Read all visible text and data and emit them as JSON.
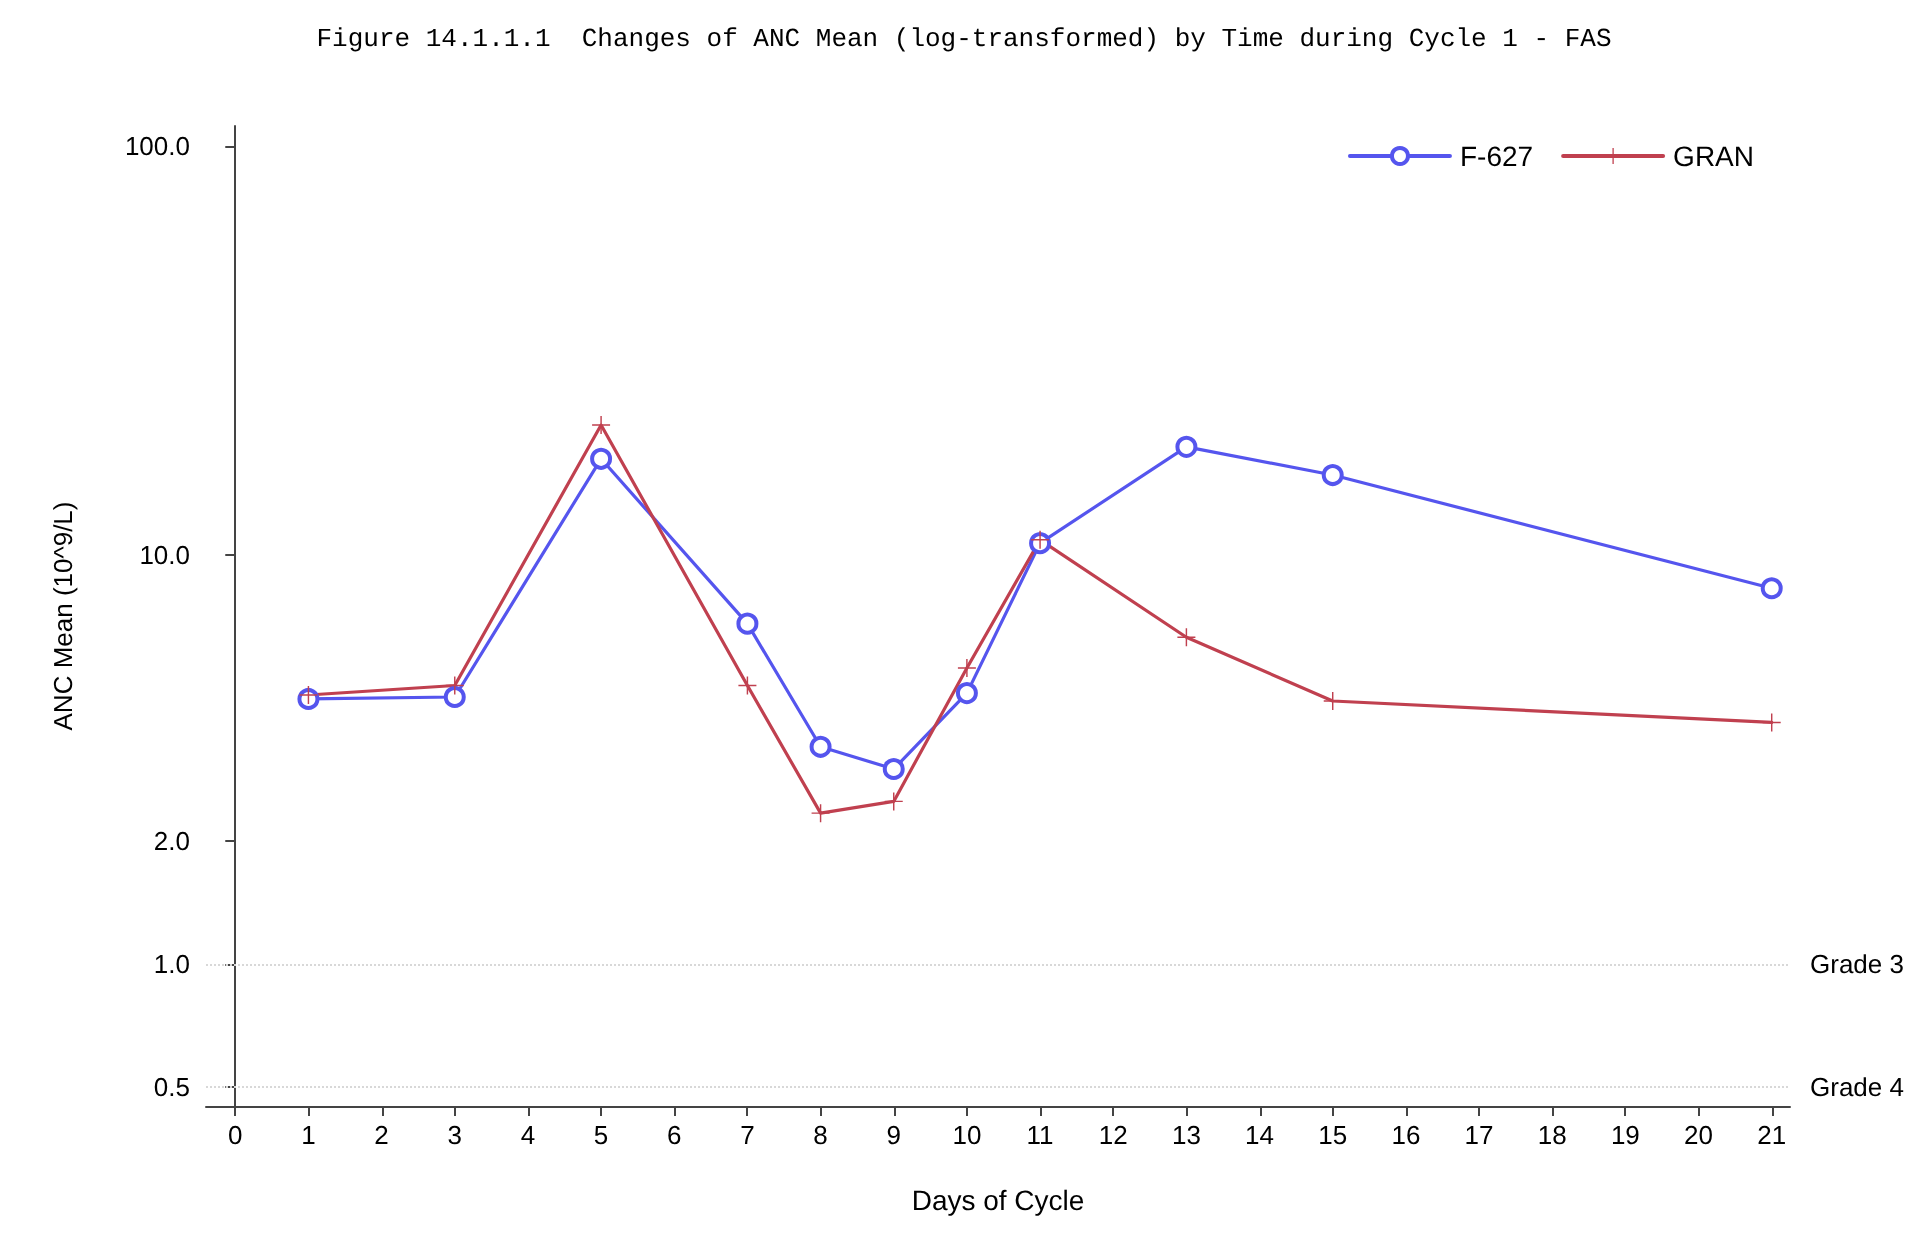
{
  "chart_data": {
    "type": "line",
    "title": "Figure 14.1.1.1  Changes of ANC Mean (log-transformed) by Time during Cycle 1 - FAS",
    "xlabel": "Days of Cycle",
    "ylabel": "ANC Mean (10^9/L)",
    "x": [
      1,
      3,
      5,
      7,
      8,
      9,
      10,
      11,
      13,
      15,
      21
    ],
    "series": [
      {
        "name": "F-627",
        "color": "#5555ee",
        "marker": "circle",
        "values": [
          4.45,
          4.5,
          17.2,
          6.8,
          3.4,
          3.0,
          4.6,
          10.7,
          18.4,
          15.7,
          8.3
        ]
      },
      {
        "name": "GRAN",
        "color": "#c0404f",
        "marker": "cross",
        "values": [
          4.55,
          4.8,
          20.8,
          4.8,
          2.34,
          2.5,
          5.3,
          10.9,
          6.3,
          4.4,
          3.9
        ]
      }
    ],
    "log": "y",
    "xlim": [
      -0.4,
      21.25
    ],
    "xticks": [
      0,
      1,
      2,
      3,
      4,
      5,
      6,
      7,
      8,
      9,
      10,
      11,
      12,
      13,
      14,
      15,
      16,
      17,
      18,
      19,
      20,
      21
    ],
    "ylim": [
      0.45,
      112
    ],
    "yticks": [
      {
        "value": 0.5,
        "label": "0.5"
      },
      {
        "value": 1,
        "label": "1.0"
      },
      {
        "value": 2,
        "label": "2.0"
      },
      {
        "value": 10,
        "label": "10.0"
      },
      {
        "value": 100,
        "label": "100.0"
      }
    ],
    "ref_lines": [
      {
        "axis": "y",
        "value": 1,
        "label": "Grade 3",
        "color": "#d8d8d8",
        "line_style": "dotted"
      },
      {
        "axis": "y",
        "value": 0.5,
        "label": "Grade 4",
        "color": "#d8d8d8",
        "line_style": "dotted"
      }
    ],
    "grid": false,
    "legend": "top right",
    "line_style": "solid"
  }
}
